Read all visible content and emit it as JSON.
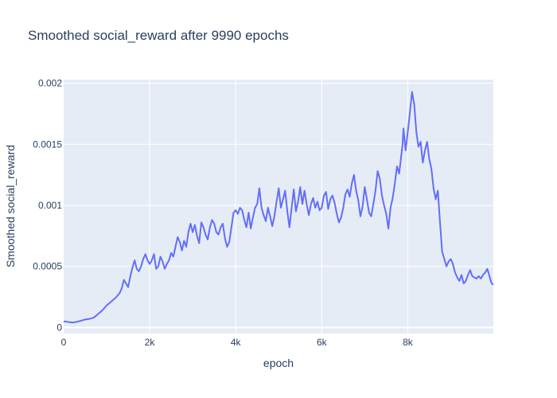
{
  "chart_data": {
    "type": "line",
    "title": "Smoothed social_reward after 9990 epochs",
    "xlabel": "epoch",
    "ylabel": "Smoothed social_reward",
    "xlim": [
      0,
      9990
    ],
    "ylim": [
      -5e-05,
      0.00203
    ],
    "x_ticks": [
      0,
      2000,
      4000,
      6000,
      8000
    ],
    "x_tick_labels": [
      "0",
      "2k",
      "4k",
      "6k",
      "8k"
    ],
    "y_ticks": [
      0,
      0.0005,
      0.001,
      0.0015,
      0.002
    ],
    "y_tick_labels": [
      "0",
      "0.0005",
      "0.001",
      "0.0015",
      "0.002"
    ],
    "grid": true,
    "line_color": "#636efa",
    "plot_bg": "#e5ecf6",
    "series": [
      {
        "x": [
          0,
          100,
          200,
          300,
          400,
          500,
          600,
          700,
          800,
          900,
          1000,
          1100,
          1200,
          1300,
          1350,
          1400,
          1450,
          1500,
          1550,
          1600,
          1650,
          1700,
          1750,
          1800,
          1850,
          1900,
          1950,
          2000,
          2050,
          2100,
          2150,
          2200,
          2250,
          2300,
          2350,
          2400,
          2450,
          2500,
          2550,
          2600,
          2650,
          2700,
          2750,
          2800,
          2850,
          2900,
          2950,
          3000,
          3050,
          3100,
          3150,
          3200,
          3250,
          3300,
          3350,
          3400,
          3450,
          3500,
          3550,
          3600,
          3650,
          3700,
          3750,
          3800,
          3850,
          3900,
          3950,
          4000,
          4050,
          4100,
          4150,
          4200,
          4250,
          4300,
          4350,
          4400,
          4450,
          4500,
          4550,
          4600,
          4650,
          4700,
          4750,
          4800,
          4850,
          4900,
          4950,
          5000,
          5050,
          5100,
          5150,
          5200,
          5250,
          5300,
          5350,
          5400,
          5450,
          5500,
          5550,
          5600,
          5650,
          5700,
          5750,
          5800,
          5850,
          5900,
          5950,
          6000,
          6050,
          6100,
          6150,
          6200,
          6250,
          6300,
          6350,
          6400,
          6450,
          6500,
          6550,
          6600,
          6650,
          6700,
          6750,
          6800,
          6850,
          6900,
          6950,
          7000,
          7050,
          7100,
          7150,
          7200,
          7250,
          7300,
          7350,
          7400,
          7450,
          7500,
          7550,
          7600,
          7650,
          7700,
          7750,
          7800,
          7850,
          7880,
          7900,
          7950,
          8000,
          8050,
          8100,
          8150,
          8200,
          8250,
          8300,
          8350,
          8400,
          8450,
          8500,
          8550,
          8600,
          8650,
          8700,
          8750,
          8800,
          8850,
          8900,
          8950,
          9000,
          9050,
          9100,
          9150,
          9200,
          9250,
          9300,
          9350,
          9400,
          9450,
          9500,
          9550,
          9600,
          9650,
          9700,
          9750,
          9800,
          9850,
          9900,
          9950,
          9990
        ],
        "y": [
          5e-05,
          4.5e-05,
          4e-05,
          4.5e-05,
          5.5e-05,
          6.5e-05,
          7e-05,
          8e-05,
          0.00011,
          0.00014,
          0.00018,
          0.00021,
          0.00024,
          0.00028,
          0.00032,
          0.00039,
          0.00036,
          0.00033,
          0.00042,
          0.00049,
          0.00055,
          0.00048,
          0.00046,
          0.0005,
          0.00056,
          0.0006,
          0.00055,
          0.00052,
          0.00055,
          0.0006,
          0.00048,
          0.0005,
          0.00058,
          0.00054,
          0.00048,
          0.00052,
          0.00055,
          0.00061,
          0.00058,
          0.00066,
          0.00074,
          0.0007,
          0.00063,
          0.00071,
          0.00066,
          0.00078,
          0.00085,
          0.00078,
          0.00084,
          0.00075,
          0.00069,
          0.00086,
          0.00082,
          0.00076,
          0.00072,
          0.00082,
          0.00088,
          0.00085,
          0.00078,
          0.00076,
          0.00082,
          0.00085,
          0.00073,
          0.00066,
          0.0007,
          0.00082,
          0.00094,
          0.00096,
          0.00093,
          0.00098,
          0.00096,
          0.00088,
          0.00082,
          0.00094,
          0.00081,
          0.0009,
          0.00098,
          0.00101,
          0.00114,
          0.00098,
          0.00092,
          0.00087,
          0.00098,
          0.00091,
          0.00083,
          0.00091,
          0.00103,
          0.00114,
          0.00098,
          0.00105,
          0.00112,
          0.00095,
          0.00082,
          0.00098,
          0.00113,
          0.00095,
          0.00103,
          0.00115,
          0.00101,
          0.00112,
          0.00101,
          0.00092,
          0.00101,
          0.00106,
          0.00098,
          0.00103,
          0.00096,
          0.00098,
          0.00108,
          0.00111,
          0.00097,
          0.00105,
          0.00108,
          0.00102,
          0.00093,
          0.00086,
          0.0009,
          0.00098,
          0.00109,
          0.00113,
          0.00107,
          0.00118,
          0.00125,
          0.00112,
          0.00104,
          0.00091,
          0.00099,
          0.00115,
          0.00105,
          0.00094,
          0.00091,
          0.00101,
          0.00112,
          0.00128,
          0.00122,
          0.00108,
          0.001,
          0.00093,
          0.00081,
          0.00098,
          0.00106,
          0.00118,
          0.00132,
          0.00126,
          0.00141,
          0.0015,
          0.00163,
          0.00145,
          0.0016,
          0.00176,
          0.00193,
          0.00183,
          0.0016,
          0.00148,
          0.00152,
          0.00135,
          0.00145,
          0.00152,
          0.00138,
          0.0013,
          0.00114,
          0.00105,
          0.00112,
          0.00086,
          0.00062,
          0.00056,
          0.0005,
          0.00054,
          0.00056,
          0.00052,
          0.00045,
          0.00041,
          0.00038,
          0.00043,
          0.00036,
          0.00038,
          0.00043,
          0.00047,
          0.00042,
          0.00041,
          0.0004,
          0.00042,
          0.0004,
          0.00043,
          0.00045,
          0.00048,
          0.00042,
          0.00036,
          0.00035
        ]
      }
    ]
  }
}
